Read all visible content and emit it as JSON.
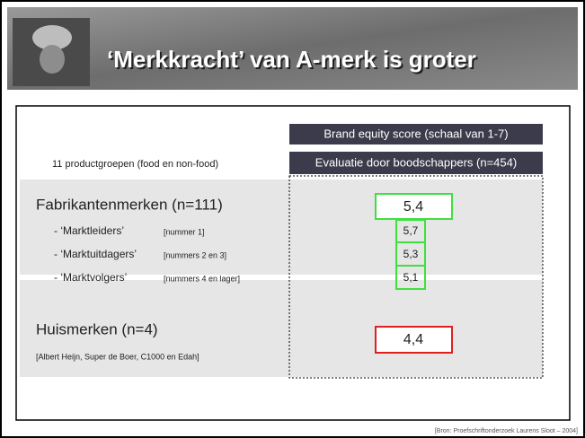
{
  "header": {
    "title": "‘Merkkracht’ van A-merk is groter"
  },
  "table": {
    "column_headers": [
      "Brand equity score (schaal van 1-7)",
      "Evaluatie door boodschappers (n=454)"
    ],
    "row_header": "11 productgroepen (food en non-food)",
    "groups": [
      {
        "name": "Fabrikantenmerken (n=111)",
        "score": "5,4",
        "rows": [
          {
            "label": "- ‘Marktleiders’",
            "note": "[nummer 1]",
            "score": "5,7"
          },
          {
            "label": "- ‘Marktuitdagers’",
            "note": "[nummers 2 en 3]",
            "score": "5,3"
          },
          {
            "label": "- ‘Marktvolgers’",
            "note": "[nummers 4 en lager]",
            "score": "5,1"
          }
        ]
      },
      {
        "name": "Huismerken (n=4)",
        "note": "[Albert Heijn, Super de Boer, C1000 en Edah]",
        "score": "4,4"
      }
    ]
  },
  "source": "[Bron: Proefschriftonderzoek Laurens Sloot – 2004]"
}
